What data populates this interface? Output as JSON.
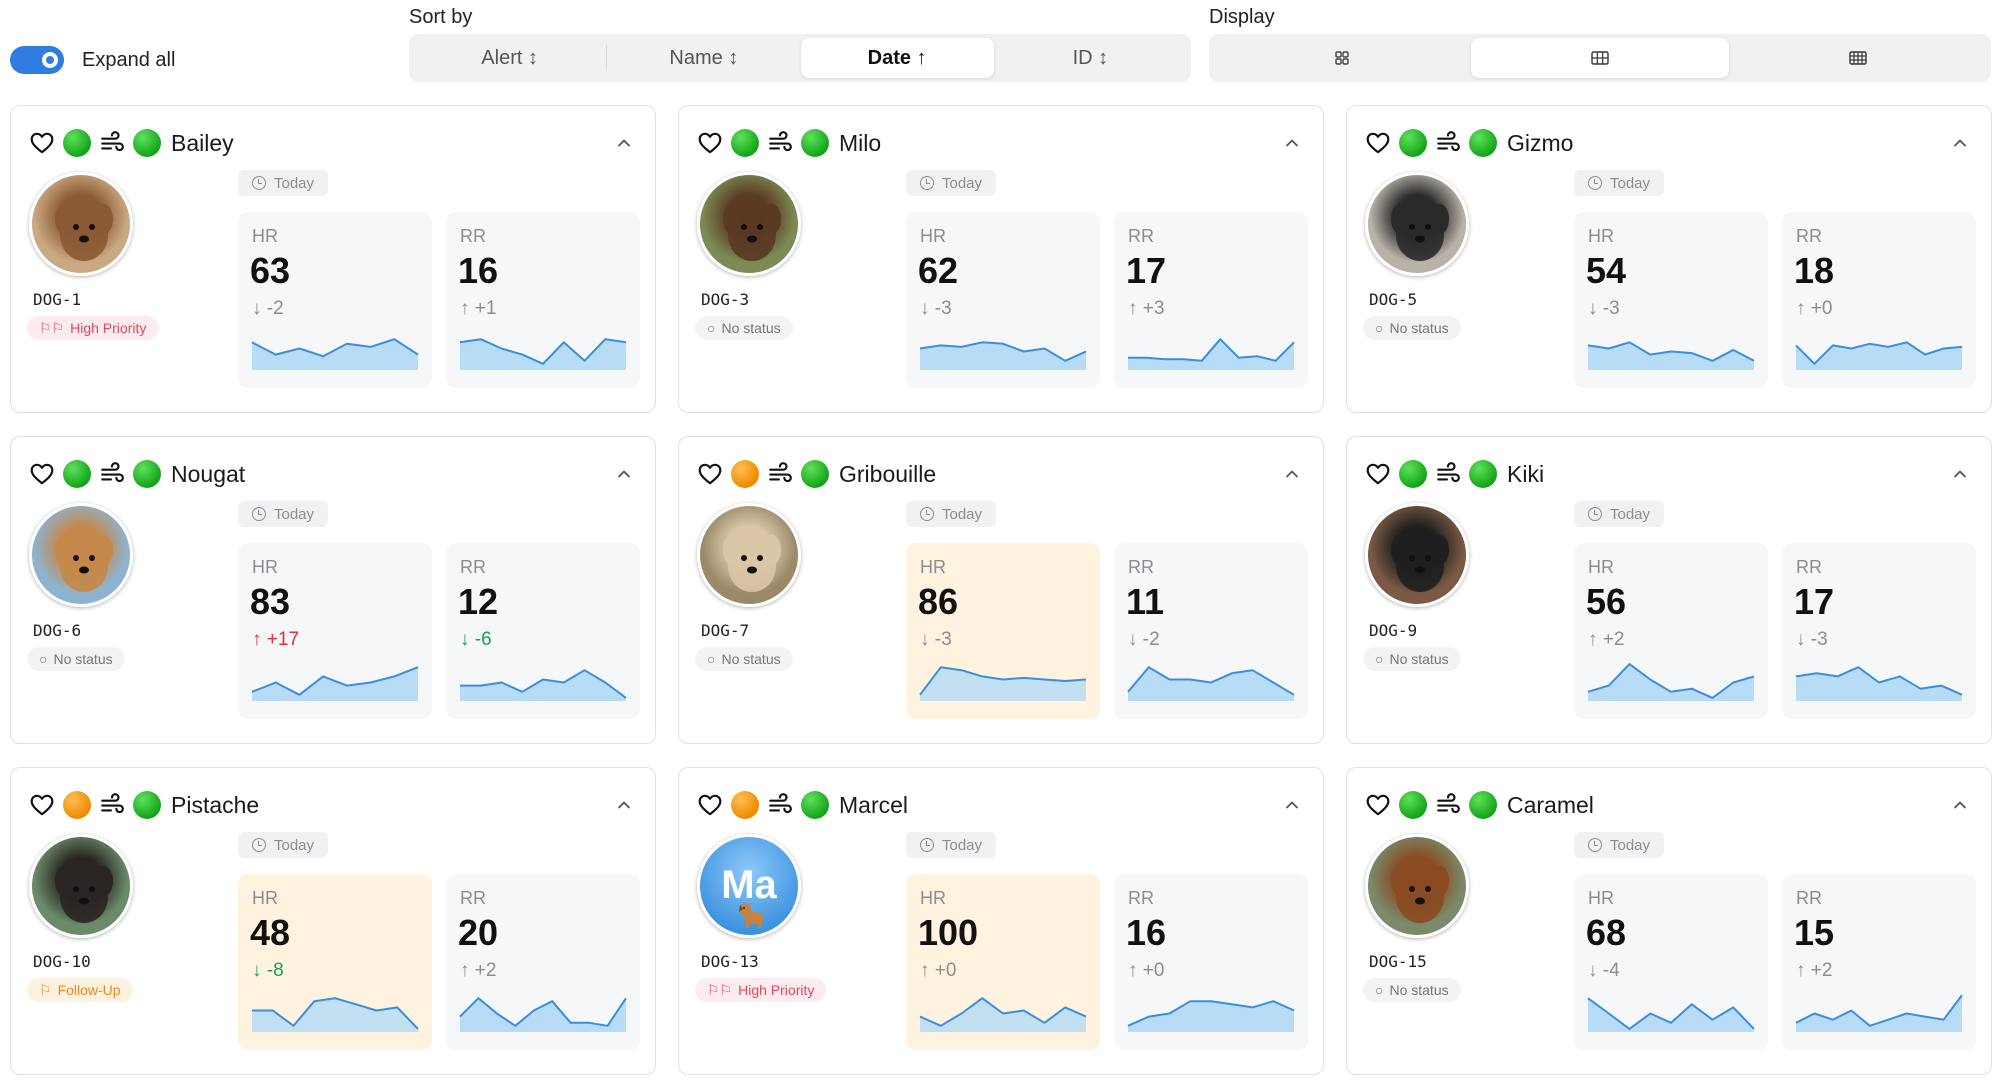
{
  "controls": {
    "expand_all_label": "Expand all",
    "sort_by_label": "Sort by",
    "sort_options": [
      "Alert ↕",
      "Name ↕",
      "Date ↑",
      "ID ↕"
    ],
    "sort_active": 2,
    "display_label": "Display",
    "display_options": [
      "grid-small-icon",
      "grid-medium-icon",
      "grid-large-icon"
    ],
    "display_active": 1
  },
  "colors": {
    "accent": "#2f7de1",
    "green": "#15a51b",
    "orange": "#ef8a00",
    "spark_stroke": "#3a8ee0",
    "spark_fill": "#b9dcf6"
  },
  "today_label": "Today",
  "dogs": [
    {
      "name": "Bailey",
      "id": "DOG-1",
      "hr_dot": "green",
      "rr_dot": "green",
      "status": "High Priority",
      "status_type": "high",
      "avatar": {
        "type": "photo",
        "bg": "#c9a882",
        "fg": "#8a5a34"
      },
      "hr": {
        "label": "HR",
        "value": "63",
        "delta": "↓ -2",
        "trend": "neutral",
        "warn": false,
        "spark": [
          18,
          10,
          14,
          9,
          17,
          15,
          20,
          10
        ]
      },
      "rr": {
        "label": "RR",
        "value": "16",
        "delta": "↑ +1",
        "trend": "neutral",
        "warn": false,
        "spark": [
          18,
          20,
          14,
          10,
          4,
          18,
          6,
          20,
          18
        ]
      }
    },
    {
      "name": "Milo",
      "id": "DOG-3",
      "hr_dot": "green",
      "rr_dot": "green",
      "status": "No status",
      "status_type": "none",
      "avatar": {
        "type": "photo",
        "bg": "#7c8a55",
        "fg": "#5a3a22"
      },
      "hr": {
        "label": "HR",
        "value": "62",
        "delta": "↓ -3",
        "trend": "neutral",
        "warn": false,
        "spark": [
          14,
          16,
          15,
          18,
          17,
          12,
          14,
          6,
          12
        ]
      },
      "rr": {
        "label": "RR",
        "value": "17",
        "delta": "↑ +3",
        "trend": "neutral",
        "warn": false,
        "spark": [
          8,
          8,
          7,
          7,
          6,
          20,
          8,
          9,
          6,
          18
        ]
      }
    },
    {
      "name": "Gizmo",
      "id": "DOG-5",
      "hr_dot": "green",
      "rr_dot": "green",
      "status": "No status",
      "status_type": "none",
      "avatar": {
        "type": "photo",
        "bg": "#b8b2a8",
        "fg": "#2a2a2a"
      },
      "hr": {
        "label": "HR",
        "value": "54",
        "delta": "↓ -3",
        "trend": "neutral",
        "warn": false,
        "spark": [
          16,
          14,
          18,
          10,
          12,
          11,
          6,
          13,
          6
        ]
      },
      "rr": {
        "label": "RR",
        "value": "18",
        "delta": "↑ +0",
        "trend": "neutral",
        "warn": false,
        "spark": [
          16,
          4,
          16,
          14,
          17,
          15,
          18,
          10,
          14,
          15
        ]
      }
    },
    {
      "name": "Nougat",
      "id": "DOG-6",
      "hr_dot": "green",
      "rr_dot": "green",
      "status": "No status",
      "status_type": "none",
      "avatar": {
        "type": "photo",
        "bg": "#8fb3cf",
        "fg": "#c4884a"
      },
      "hr": {
        "label": "HR",
        "value": "83",
        "delta": "↑ +17",
        "trend": "red",
        "warn": false,
        "spark": [
          6,
          12,
          4,
          16,
          10,
          12,
          16,
          22
        ]
      },
      "rr": {
        "label": "RR",
        "value": "12",
        "delta": "↓ -6",
        "trend": "green",
        "warn": false,
        "spark": [
          10,
          10,
          12,
          6,
          14,
          12,
          20,
          12,
          2
        ]
      }
    },
    {
      "name": "Gribouille",
      "id": "DOG-7",
      "hr_dot": "orange",
      "rr_dot": "green",
      "status": "No status",
      "status_type": "none",
      "avatar": {
        "type": "photo",
        "bg": "#9a8a6a",
        "fg": "#d9c7a7"
      },
      "hr": {
        "label": "HR",
        "value": "86",
        "delta": "↓ -3",
        "trend": "neutral",
        "warn": true,
        "spark": [
          4,
          22,
          20,
          16,
          14,
          15,
          14,
          13,
          14
        ]
      },
      "rr": {
        "label": "RR",
        "value": "11",
        "delta": "↓ -2",
        "trend": "neutral",
        "warn": false,
        "spark": [
          6,
          22,
          14,
          14,
          12,
          18,
          20,
          12,
          4
        ]
      }
    },
    {
      "name": "Kiki",
      "id": "DOG-9",
      "hr_dot": "green",
      "rr_dot": "green",
      "status": "No status",
      "status_type": "none",
      "avatar": {
        "type": "photo",
        "bg": "#7a5a44",
        "fg": "#1f1f1f"
      },
      "hr": {
        "label": "HR",
        "value": "56",
        "delta": "↑ +2",
        "trend": "neutral",
        "warn": false,
        "spark": [
          6,
          10,
          24,
          14,
          6,
          8,
          2,
          12,
          16
        ]
      },
      "rr": {
        "label": "RR",
        "value": "17",
        "delta": "↓ -3",
        "trend": "neutral",
        "warn": false,
        "spark": [
          16,
          18,
          16,
          22,
          12,
          16,
          8,
          10,
          4
        ]
      }
    },
    {
      "name": "Pistache",
      "id": "DOG-10",
      "hr_dot": "orange",
      "rr_dot": "green",
      "status": "Follow-Up",
      "status_type": "follow",
      "avatar": {
        "type": "photo",
        "bg": "#6a8a6a",
        "fg": "#2a2522"
      },
      "hr": {
        "label": "HR",
        "value": "48",
        "delta": "↓ -8",
        "trend": "green",
        "warn": true,
        "spark": [
          14,
          14,
          4,
          20,
          22,
          18,
          14,
          16,
          2
        ]
      },
      "rr": {
        "label": "RR",
        "value": "20",
        "delta": "↑ +2",
        "trend": "neutral",
        "warn": false,
        "spark": [
          10,
          22,
          12,
          4,
          14,
          20,
          6,
          6,
          4,
          22
        ]
      }
    },
    {
      "name": "Marcel",
      "id": "DOG-13",
      "hr_dot": "orange",
      "rr_dot": "green",
      "status": "High Priority",
      "status_type": "high",
      "avatar": {
        "type": "initials",
        "initials": "Ma"
      },
      "hr": {
        "label": "HR",
        "value": "100",
        "delta": "↑ +0",
        "trend": "neutral",
        "warn": true,
        "spark": [
          10,
          4,
          12,
          22,
          12,
          14,
          6,
          16,
          10
        ]
      },
      "rr": {
        "label": "RR",
        "value": "16",
        "delta": "↑ +0",
        "trend": "neutral",
        "warn": false,
        "spark": [
          4,
          10,
          12,
          20,
          20,
          18,
          16,
          20,
          14
        ]
      }
    },
    {
      "name": "Caramel",
      "id": "DOG-15",
      "hr_dot": "green",
      "rr_dot": "green",
      "status": "No status",
      "status_type": "none",
      "avatar": {
        "type": "photo",
        "bg": "#7a8a6a",
        "fg": "#8a4a22"
      },
      "hr": {
        "label": "HR",
        "value": "68",
        "delta": "↓ -4",
        "trend": "neutral",
        "warn": false,
        "spark": [
          22,
          12,
          2,
          12,
          6,
          18,
          8,
          16,
          2
        ]
      },
      "rr": {
        "label": "RR",
        "value": "15",
        "delta": "↑ +2",
        "trend": "neutral",
        "warn": false,
        "spark": [
          6,
          12,
          8,
          14,
          4,
          8,
          12,
          10,
          8,
          24
        ]
      }
    }
  ]
}
